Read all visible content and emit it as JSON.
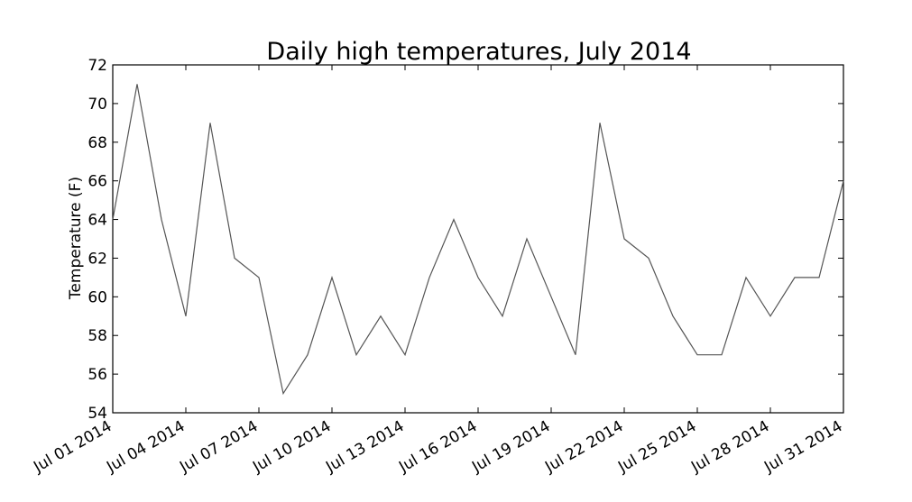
{
  "chart_data": {
    "type": "line",
    "title": "Daily high temperatures, July 2014",
    "xlabel": "",
    "ylabel": "Temperature (F)",
    "ylim": [
      54,
      72
    ],
    "yticks": [
      "54",
      "56",
      "58",
      "60",
      "62",
      "64",
      "66",
      "68",
      "70",
      "72"
    ],
    "xticks": [
      "Jul 01 2014",
      "Jul 04 2014",
      "Jul 07 2014",
      "Jul 10 2014",
      "Jul 13 2014",
      "Jul 16 2014",
      "Jul 19 2014",
      "Jul 22 2014",
      "Jul 25 2014",
      "Jul 28 2014",
      "Jul 31 2014"
    ],
    "xlim": [
      "2014-07-01",
      "2014-07-31"
    ],
    "grid": false,
    "line_color": "#555555",
    "series": [
      {
        "x": [
          "2014-07-01",
          "2014-07-02",
          "2014-07-03",
          "2014-07-04",
          "2014-07-05",
          "2014-07-06",
          "2014-07-07",
          "2014-07-08",
          "2014-07-09",
          "2014-07-10",
          "2014-07-11",
          "2014-07-12",
          "2014-07-13",
          "2014-07-14",
          "2014-07-15",
          "2014-07-16",
          "2014-07-17",
          "2014-07-18",
          "2014-07-19",
          "2014-07-20",
          "2014-07-21",
          "2014-07-22",
          "2014-07-23",
          "2014-07-24",
          "2014-07-25",
          "2014-07-26",
          "2014-07-27",
          "2014-07-28",
          "2014-07-29",
          "2014-07-30",
          "2014-07-31"
        ],
        "values": [
          64,
          71,
          64,
          59,
          69,
          62,
          61,
          55,
          57,
          61,
          57,
          59,
          57,
          61,
          64,
          61,
          59,
          63,
          60,
          57,
          69,
          63,
          62,
          59,
          57,
          57,
          61,
          59,
          61,
          61,
          66
        ]
      }
    ]
  }
}
